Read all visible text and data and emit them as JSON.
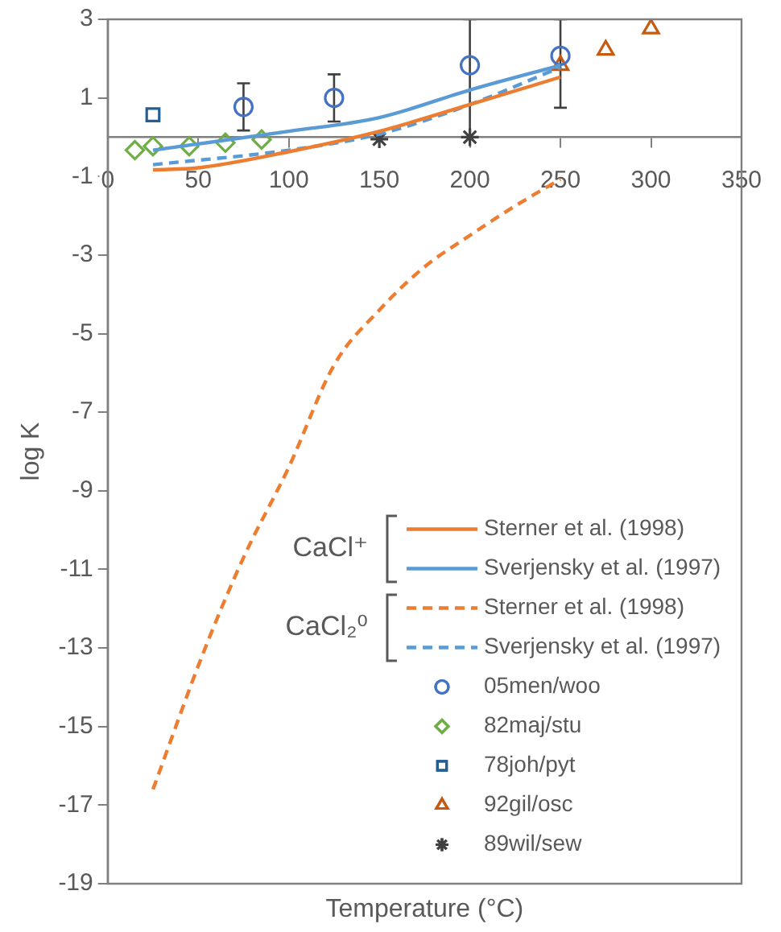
{
  "chart_data": {
    "type": "line",
    "xlabel": "Temperature (°C)",
    "ylabel": "log K",
    "xlim": [
      0,
      350
    ],
    "ylim": [
      -19,
      3
    ],
    "xticks": [
      0,
      50,
      100,
      150,
      200,
      250,
      300,
      350
    ],
    "yticks": [
      -19,
      -17,
      -15,
      -13,
      -11,
      -9,
      -7,
      -5,
      -3,
      -1,
      1,
      3
    ],
    "grid": false,
    "legend": "bottom right",
    "annotations": [
      "CaCl⁺",
      "CaCl₂⁰"
    ],
    "series": [
      {
        "name": "Sterner et al. (1998)",
        "color": "#ed7d31",
        "line_style": "solid",
        "marker": "none",
        "x": [
          25,
          50,
          100,
          150,
          200,
          250
        ],
        "values": [
          -0.83,
          -0.78,
          -0.37,
          0.15,
          0.83,
          1.53
        ]
      },
      {
        "name": "Sverjensky et al. (1997)",
        "color": "#5b9bd5",
        "line_style": "solid",
        "marker": "none",
        "x": [
          25,
          100,
          150,
          200,
          250
        ],
        "values": [
          -0.33,
          0.15,
          0.5,
          1.2,
          1.83
        ]
      },
      {
        "name": "Sterner et al. (1998)",
        "color": "#ed7d31",
        "line_style": "dashed",
        "marker": "none",
        "x": [
          25,
          53,
          75,
          100,
          125,
          150,
          175,
          200,
          225,
          250
        ],
        "values": [
          -16.6,
          -13.1,
          -10.7,
          -8.4,
          -5.8,
          -4.4,
          -3.3,
          -2.5,
          -1.75,
          -1.07
        ]
      },
      {
        "name": "Sverjensky et al. (1997)",
        "color": "#5b9bd5",
        "line_style": "dashed",
        "marker": "none",
        "x": [
          25,
          100,
          150,
          200,
          250
        ],
        "values": [
          -0.7,
          -0.33,
          0.08,
          0.83,
          1.78
        ]
      },
      {
        "name": "05men/woo",
        "type": "scatter",
        "color": "#4472c4",
        "marker": "circle",
        "x": [
          75,
          125,
          200,
          250
        ],
        "values": [
          0.77,
          1.0,
          1.83,
          2.07
        ],
        "errors": [
          [
            0.17,
            1.37
          ],
          [
            0.4,
            1.6
          ],
          [
            0,
            3
          ],
          [
            0.75,
            3
          ]
        ]
      },
      {
        "name": "82maj/stu",
        "type": "scatter",
        "color": "#70ad47",
        "marker": "diamond",
        "x": [
          15,
          25,
          45,
          65,
          85
        ],
        "values": [
          -0.33,
          -0.23,
          -0.23,
          -0.14,
          -0.06
        ]
      },
      {
        "name": "78joh/pyt",
        "type": "scatter",
        "color": "#255e91",
        "marker": "square",
        "x": [
          25
        ],
        "values": [
          0.57
        ]
      },
      {
        "name": "92gil/osc",
        "type": "scatter",
        "color": "#c55a11",
        "marker": "triangle",
        "x": [
          250,
          275,
          300
        ],
        "values": [
          1.83,
          2.22,
          2.76
        ]
      },
      {
        "name": "89wil/sew",
        "type": "scatter",
        "color": "#404040",
        "marker": "cross",
        "x": [
          150,
          200
        ],
        "values": [
          -0.05,
          0
        ]
      }
    ]
  }
}
